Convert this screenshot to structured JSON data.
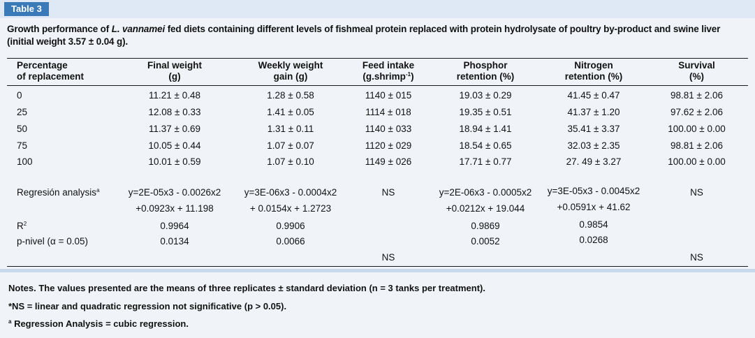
{
  "tag": "Table 3",
  "caption": {
    "pre": "Growth performance of ",
    "species": "L. vannamei",
    "post": " fed diets containing different levels of fishmeal protein replaced with protein hydrolysate of poultry by-product and swine liver (initial weight 3.57 ± 0.04 g)."
  },
  "headers": {
    "col1": [
      "Percentage",
      "of replacement"
    ],
    "col2": [
      "Final weight",
      "(g)"
    ],
    "col3": [
      "Weekly weight",
      "gain (g)"
    ],
    "col4": [
      "Feed intake",
      "(g.shrimp",
      "-1",
      ")"
    ],
    "col5": [
      "Phosphor",
      "retention (%)"
    ],
    "col6": [
      "Nitrogen",
      "retention (%)"
    ],
    "col7": [
      "Survival",
      "(%)"
    ]
  },
  "rows": [
    [
      "0",
      "11.21 ± 0.48",
      "1.28 ± 0.58",
      "1140 ± 015",
      "19.03 ± 0.29",
      "41.45 ± 0.47",
      "98.81 ± 2.06"
    ],
    [
      "25",
      "12.08 ± 0.33",
      "1.41 ± 0.05",
      "1114 ± 018",
      "19.35 ± 0.51",
      "41.37 ± 1.20",
      "97.62 ± 2.06"
    ],
    [
      "50",
      "11.37 ± 0.69",
      "1.31 ± 0.11",
      "1140 ± 033",
      "18.94 ± 1.41",
      "35.41 ± 3.37",
      "100.00 ± 0.00"
    ],
    [
      "75",
      "10.05 ± 0.44",
      "1.07 ± 0.07",
      "1120 ± 029",
      "18.54 ± 0.65",
      "32.03 ± 2.35",
      "98.81 ± 2.06"
    ],
    [
      "100",
      "10.01 ± 0.59",
      "1.07 ± 0.10",
      "1149 ± 026",
      "17.71 ± 0.77",
      "27. 49 ± 3.27",
      "100.00 ± 0.00"
    ]
  ],
  "regression": {
    "label": "Regresión analysis",
    "label_sup": "a",
    "final_weight": [
      "y=2E-05x3 - 0.0026x2",
      "+0.0923x + 11.198"
    ],
    "weekly_gain": [
      "y=3E-06x3 - 0.0004x2",
      "+ 0.0154x + 1.2723"
    ],
    "feed_intake": "NS",
    "phosphor": [
      "y=2E-06x3 - 0.0005x2",
      "+0.0212x + 19.044"
    ],
    "nitrogen": [
      "y=3E-05x3 - 0.0045x2",
      "+0.0591x + 41.62"
    ],
    "survival": "NS"
  },
  "r2": {
    "label": "R",
    "label_sup": "2",
    "values": [
      "0.9964",
      "0.9906",
      "0.9869",
      "0.9854"
    ]
  },
  "pnivel": {
    "label": "p-nivel (α = 0.05)",
    "values": [
      "0.0134",
      "0.0066",
      "0.0052",
      "0.0268"
    ]
  },
  "ns_row": [
    "NS",
    "NS"
  ],
  "notes": {
    "line1": "Notes. The values presented are the means of three replicates ± standard deviation (n = 3 tanks per treatment).",
    "line2": "*NS = linear and quadratic regression not significative (p > 0.05).",
    "line3_sup": "a",
    "line3": " Regression Analysis = cubic regression."
  },
  "colors": {
    "tag_bg": "#3a7ab8",
    "bar_bg": "#dfe9f5",
    "page_bg": "#f0f4f9"
  }
}
